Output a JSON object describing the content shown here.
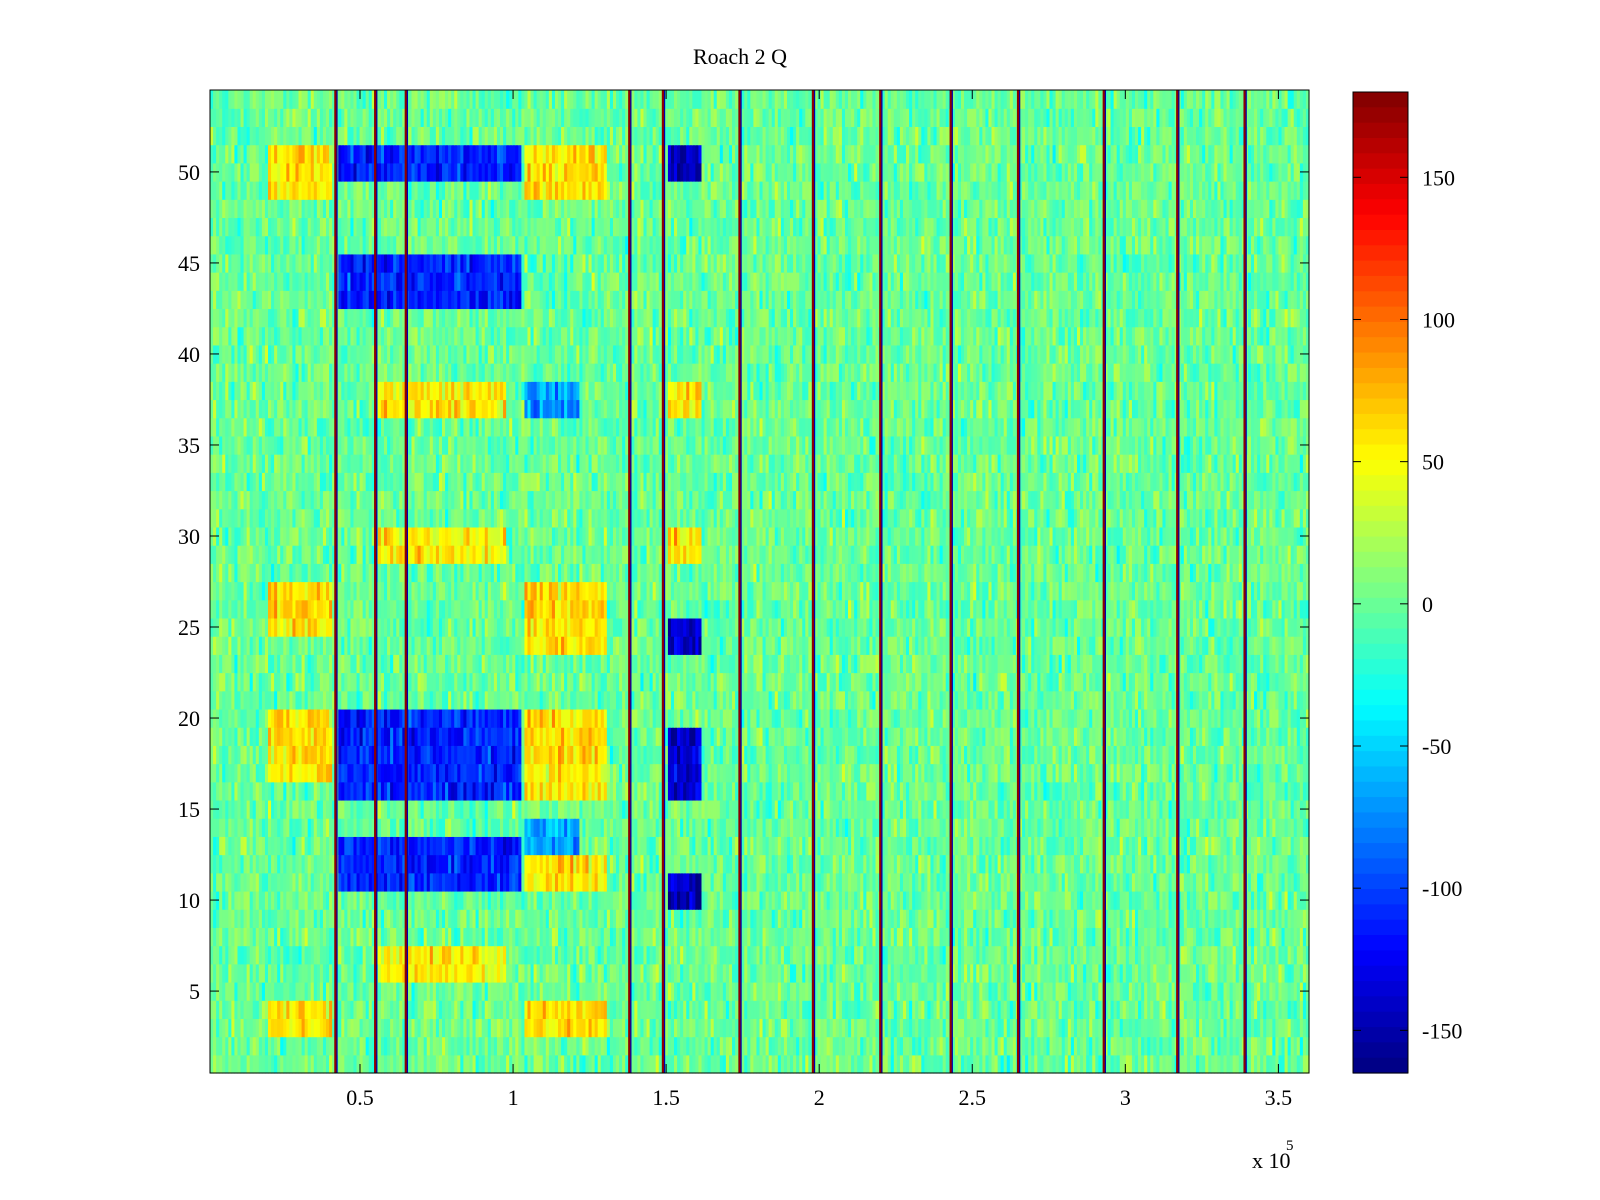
{
  "chart_data": {
    "type": "heatmap",
    "title": "Roach 2 Q",
    "xlabel": "",
    "ylabel": "",
    "x_multiplier_label": "x 10",
    "x_multiplier_exponent": "5",
    "xlim": [
      1000,
      360000
    ],
    "ylim": [
      0.5,
      54.5
    ],
    "x_ticks": [
      {
        "value": 50000,
        "label": "0.5"
      },
      {
        "value": 100000,
        "label": "1"
      },
      {
        "value": 150000,
        "label": "1.5"
      },
      {
        "value": 200000,
        "label": "2"
      },
      {
        "value": 250000,
        "label": "2.5"
      },
      {
        "value": 300000,
        "label": "3"
      },
      {
        "value": 350000,
        "label": "3.5"
      }
    ],
    "y_ticks": [
      {
        "value": 5,
        "label": "5"
      },
      {
        "value": 10,
        "label": "10"
      },
      {
        "value": 15,
        "label": "15"
      },
      {
        "value": 20,
        "label": "20"
      },
      {
        "value": 25,
        "label": "25"
      },
      {
        "value": 30,
        "label": "30"
      },
      {
        "value": 35,
        "label": "35"
      },
      {
        "value": 40,
        "label": "40"
      },
      {
        "value": 45,
        "label": "45"
      },
      {
        "value": 50,
        "label": "50"
      }
    ],
    "colorbar": {
      "colormap": "jet",
      "range": [
        -165,
        180
      ],
      "ticks": [
        {
          "value": 150,
          "label": "150"
        },
        {
          "value": 100,
          "label": "100"
        },
        {
          "value": 50,
          "label": "50"
        },
        {
          "value": 0,
          "label": "0"
        },
        {
          "value": -50,
          "label": "-50"
        },
        {
          "value": -100,
          "label": "-100"
        },
        {
          "value": -150,
          "label": "-150"
        }
      ]
    },
    "background_value": 0,
    "vertical_lines_x": [
      42000,
      55000,
      65000,
      138000,
      149000,
      174000,
      198000,
      220000,
      243000,
      265000,
      293000,
      317000,
      339000
    ],
    "regions": [
      {
        "x": [
          20000,
          41000
        ],
        "rows": [
          [
            49,
            51
          ],
          [
            19,
            20
          ],
          [
            17,
            18
          ],
          [
            25,
            27
          ],
          [
            3,
            4
          ]
        ],
        "value": 60
      },
      {
        "x": [
          43000,
          103000
        ],
        "rows": [
          [
            50,
            51
          ],
          [
            43,
            45
          ],
          [
            16,
            20
          ],
          [
            11,
            12
          ],
          [
            13,
            13
          ]
        ],
        "value": -110
      },
      {
        "x": [
          56000,
          98000
        ],
        "rows": [
          [
            37,
            38
          ],
          [
            29,
            30
          ],
          [
            6,
            7
          ]
        ],
        "value": 55
      },
      {
        "x": [
          104000,
          131000
        ],
        "rows": [
          [
            49,
            51
          ],
          [
            16,
            20
          ],
          [
            24,
            27
          ],
          [
            3,
            4
          ],
          [
            11,
            12
          ]
        ],
        "value": 60
      },
      {
        "x": [
          104000,
          122000
        ],
        "rows": [
          [
            37,
            38
          ],
          [
            13,
            14
          ]
        ],
        "value": -70
      },
      {
        "x": [
          151000,
          162000
        ],
        "rows": [
          [
            50,
            51
          ],
          [
            16,
            19
          ],
          [
            10,
            11
          ],
          [
            24,
            25
          ]
        ],
        "value": -140
      },
      {
        "x": [
          151000,
          162000
        ],
        "rows": [
          [
            37,
            38
          ],
          [
            29,
            30
          ]
        ],
        "value": 60
      }
    ]
  },
  "colors": {
    "axes_line": "#000000",
    "background": "#ffffff"
  }
}
